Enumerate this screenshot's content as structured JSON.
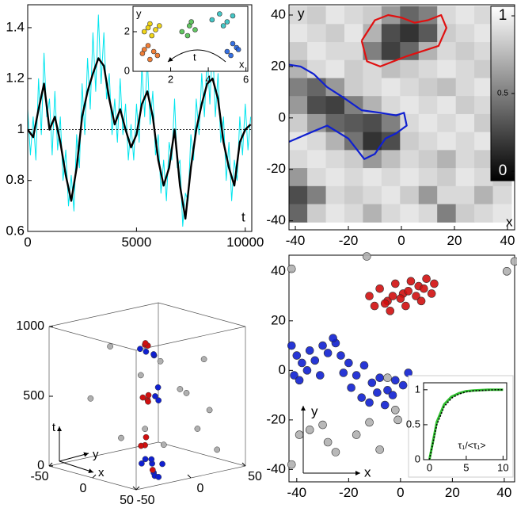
{
  "chart_data": [
    {
      "type": "line",
      "xlim": [
        0,
        10300
      ],
      "ylim": [
        0.6,
        1.49
      ],
      "xticks": [
        0,
        5000,
        10000
      ],
      "yticks": [
        0.6,
        0.8,
        1,
        1.2,
        1.4
      ],
      "xlabel": "t",
      "hline": 1,
      "series": [
        {
          "color": "#00e5ee",
          "x": [
            0,
            125,
            250,
            375,
            500,
            625,
            750,
            875,
            1000,
            1125,
            1250,
            1375,
            1500,
            1625,
            1750,
            1875,
            2000,
            2125,
            2250,
            2375,
            2500,
            2625,
            2750,
            2875,
            3000,
            3125,
            3250,
            3375,
            3500,
            3625,
            3750,
            3875,
            4000,
            4125,
            4250,
            4375,
            4500,
            4625,
            4750,
            4875,
            5000,
            5125,
            5250,
            5375,
            5500,
            5625,
            5750,
            5875,
            6000,
            6125,
            6250,
            6375,
            6500,
            6625,
            6750,
            6875,
            7000,
            7125,
            7250,
            7375,
            7500,
            7625,
            7750,
            7875,
            8000,
            8125,
            8250,
            8375,
            8500,
            8625,
            8750,
            8875,
            9000,
            9125,
            9250,
            9375,
            9500,
            9625,
            9750,
            9875,
            10000,
            10125,
            10250
          ],
          "values": [
            1.08,
            0.9,
            1.05,
            0.88,
            1.2,
            0.98,
            1.3,
            1.05,
            1.12,
            0.9,
            1.15,
            0.92,
            1.05,
            0.8,
            0.92,
            0.7,
            0.82,
            0.68,
            0.98,
            0.85,
            1.18,
            0.98,
            1.28,
            1.08,
            1.38,
            1.15,
            1.45,
            1.18,
            1.38,
            1.12,
            1.22,
            0.98,
            1.12,
            0.95,
            1.2,
            0.98,
            1.1,
            0.88,
            1.02,
            0.88,
            1.1,
            0.95,
            1.25,
            1.05,
            1.28,
            1.02,
            1.15,
            0.9,
            0.98,
            0.75,
            0.88,
            0.72,
            0.95,
            0.88,
            1.12,
            0.85,
            0.88,
            0.62,
            0.75,
            0.72,
            0.98,
            0.88,
            1.12,
            0.98,
            1.22,
            1.05,
            1.3,
            1.1,
            1.35,
            1.05,
            1.22,
            0.95,
            1.05,
            0.8,
            0.95,
            0.72,
            0.88,
            0.8,
            1.05,
            0.9,
            1.1,
            0.92,
            1.05
          ]
        },
        {
          "color": "#000000",
          "x": [
            0,
            250,
            500,
            750,
            1000,
            1250,
            1500,
            1750,
            2000,
            2250,
            2500,
            2750,
            3000,
            3250,
            3500,
            3750,
            4000,
            4250,
            4500,
            4750,
            5000,
            5250,
            5500,
            5750,
            6000,
            6250,
            6500,
            6750,
            7000,
            7250,
            7500,
            7750,
            8000,
            8250,
            8500,
            8750,
            9000,
            9250,
            9500,
            9750,
            10000,
            10250
          ],
          "values": [
            1.0,
            0.97,
            1.08,
            1.18,
            1.0,
            1.05,
            0.95,
            0.82,
            0.72,
            0.85,
            1.05,
            1.15,
            1.22,
            1.28,
            1.25,
            1.12,
            1.02,
            1.08,
            1.0,
            0.93,
            0.98,
            1.1,
            1.15,
            1.05,
            0.88,
            0.78,
            0.85,
            1.0,
            0.78,
            0.65,
            0.85,
            1.0,
            1.1,
            1.18,
            1.2,
            1.12,
            0.95,
            0.85,
            0.78,
            0.95,
            1.0,
            1.02
          ]
        }
      ],
      "inset": {
        "type": "scatter",
        "xlim": [
          0,
          6.1
        ],
        "ylim": [
          0,
          3.28
        ],
        "xticks": [
          2,
          4,
          6
        ],
        "yticks": [
          0,
          2
        ],
        "xlabel": "x",
        "ylabel": "y",
        "annotation": "t",
        "series": [
          {
            "color": "#f0d000",
            "x": [
              0.6,
              0.9,
              1.2,
              1.0,
              1.4,
              0.8
            ],
            "values": [
              2.0,
              2.4,
              2.1,
              1.8,
              2.3,
              2.2
            ]
          },
          {
            "color": "#50c050",
            "x": [
              2.6,
              3.0,
              3.3,
              2.9,
              3.1
            ],
            "values": [
              2.0,
              2.3,
              2.1,
              1.8,
              2.5
            ]
          },
          {
            "color": "#30c0c0",
            "x": [
              4.2,
              4.6,
              5.0,
              5.3,
              4.8
            ],
            "values": [
              2.6,
              2.9,
              2.5,
              2.8,
              2.3
            ]
          },
          {
            "color": "#2060e0",
            "x": [
              5.0,
              5.3,
              5.5,
              5.2,
              5.6
            ],
            "values": [
              1.0,
              1.4,
              1.2,
              0.8,
              1.1
            ]
          },
          {
            "color": "#f07020",
            "x": [
              0.5,
              0.8,
              1.1,
              1.3,
              0.9,
              0.6
            ],
            "values": [
              0.9,
              1.3,
              1.0,
              0.8,
              0.6,
              1.1
            ]
          }
        ]
      }
    },
    {
      "type": "heatmap",
      "xlim": [
        -42.4,
        42.7
      ],
      "ylim": [
        -43.5,
        44
      ],
      "xticks": [
        -40,
        -20,
        0,
        20,
        40
      ],
      "yticks": [
        -40,
        -20,
        0,
        20,
        40
      ],
      "xlabel": "x",
      "ylabel": "y",
      "x": [
        -39,
        -32,
        -25,
        -18,
        -11,
        -4,
        3,
        10,
        17,
        24,
        31,
        38
      ],
      "y": [
        40,
        33,
        26,
        19,
        12,
        5,
        -2,
        -9,
        -16,
        -23,
        -30,
        -37
      ],
      "z": [
        [
          0.85,
          0.8,
          0.9,
          0.85,
          0.8,
          0.6,
          0.4,
          0.5,
          0.85,
          0.9,
          0.85,
          0.8
        ],
        [
          0.9,
          0.85,
          0.8,
          0.9,
          0.7,
          0.3,
          0.2,
          0.35,
          0.8,
          0.85,
          0.9,
          0.75
        ],
        [
          0.8,
          0.9,
          0.85,
          0.85,
          0.5,
          0.25,
          0.4,
          0.7,
          0.85,
          0.8,
          0.85,
          0.9
        ],
        [
          0.7,
          0.85,
          0.9,
          0.8,
          0.85,
          0.75,
          0.8,
          0.85,
          0.9,
          0.85,
          0.8,
          0.85
        ],
        [
          0.5,
          0.4,
          0.6,
          0.8,
          0.85,
          0.9,
          0.85,
          0.8,
          0.75,
          0.85,
          0.9,
          0.8
        ],
        [
          0.6,
          0.3,
          0.25,
          0.5,
          0.7,
          0.85,
          0.9,
          0.85,
          0.9,
          0.8,
          0.85,
          0.85
        ],
        [
          0.8,
          0.6,
          0.4,
          0.35,
          0.3,
          0.5,
          0.85,
          0.9,
          0.85,
          0.9,
          0.8,
          0.9
        ],
        [
          0.9,
          0.85,
          0.7,
          0.45,
          0.2,
          0.3,
          0.8,
          0.85,
          0.9,
          0.85,
          0.9,
          0.85
        ],
        [
          0.85,
          0.9,
          0.85,
          0.8,
          0.6,
          0.75,
          0.85,
          0.8,
          0.7,
          0.85,
          0.8,
          0.9
        ],
        [
          0.6,
          0.85,
          0.9,
          0.85,
          0.9,
          0.85,
          0.9,
          0.85,
          0.8,
          0.9,
          0.85,
          0.8
        ],
        [
          0.3,
          0.5,
          0.85,
          0.8,
          0.85,
          0.9,
          0.8,
          0.6,
          0.85,
          0.85,
          0.7,
          0.85
        ],
        [
          0.4,
          0.8,
          0.9,
          0.85,
          0.7,
          0.85,
          0.9,
          0.85,
          0.5,
          0.8,
          0.85,
          0.9
        ]
      ],
      "clim": [
        0,
        1
      ],
      "cticks": [
        0,
        0.5,
        1
      ],
      "contours": [
        {
          "color": "#e01010",
          "x": [
            -15,
            -10,
            -5,
            0,
            5,
            10,
            15,
            17,
            14,
            8,
            2,
            -3,
            -8,
            -13,
            -15
          ],
          "values": [
            30,
            38,
            40,
            39,
            37,
            38,
            40,
            35,
            28,
            26,
            24,
            22,
            20,
            22,
            30
          ]
        },
        {
          "color": "#1020d0",
          "x": [
            -44,
            -38,
            -33,
            -28,
            -22,
            -15,
            -8,
            -2,
            1,
            2,
            -2,
            -6,
            -10,
            -14,
            -20,
            -28,
            -35,
            -44
          ],
          "values": [
            21,
            20,
            17,
            12,
            8,
            3,
            2,
            1,
            2,
            -3,
            -6,
            -8,
            -14,
            -16,
            -8,
            -3,
            -6,
            -10
          ]
        }
      ]
    },
    {
      "type": "scatter3d",
      "xlim": [
        -50,
        50
      ],
      "ylim": [
        -50,
        50
      ],
      "tlim": [
        0,
        1000
      ],
      "xticks": [
        -50,
        0,
        50
      ],
      "yticks": [
        -50,
        0,
        50
      ],
      "tticks": [
        0,
        500,
        1000
      ],
      "xlabel": "x",
      "ylabel": "y",
      "tlabel": "t",
      "series": [
        {
          "color": "#1020d0",
          "x": [
            55,
            58,
            52,
            60,
            50,
            53,
            48,
            58,
            62,
            55,
            65,
            50,
            45,
            40,
            38
          ],
          "y": [
            -45,
            -40,
            -48,
            -42,
            -30,
            -35,
            -28,
            -48,
            -45,
            -40,
            -38,
            -45,
            -30,
            -25,
            -20
          ],
          "values": [
            990,
            960,
            1010,
            975,
            700,
            650,
            600,
            230,
            200,
            210,
            190,
            180,
            80,
            40,
            20
          ]
        },
        {
          "color": "#d01010",
          "x": [
            35,
            32,
            38,
            30,
            28,
            34,
            26,
            30,
            35,
            28,
            25
          ],
          "y": [
            -30,
            -25,
            -32,
            -28,
            -22,
            -26,
            -20,
            -25,
            -30,
            -28,
            -15
          ],
          "values": [
            980,
            960,
            1000,
            590,
            560,
            610,
            540,
            300,
            260,
            240,
            40
          ]
        },
        {
          "color": "#b0b0b0",
          "x": [
            -10,
            -20,
            0,
            10,
            -30,
            20,
            30,
            -40,
            40,
            -5,
            15,
            -25,
            45
          ],
          "y": [
            20,
            10,
            30,
            -10,
            0,
            30,
            40,
            -20,
            20,
            -30,
            45,
            35,
            0
          ],
          "values": [
            700,
            600,
            500,
            300,
            150,
            250,
            100,
            450,
            800,
            900,
            350,
            50,
            600
          ]
        }
      ]
    },
    {
      "type": "scatter",
      "xlim": [
        -43,
        44
      ],
      "ylim": [
        -45,
        46.5
      ],
      "xticks": [
        -40,
        -20,
        0,
        20,
        40
      ],
      "yticks": [
        -40,
        -20,
        0,
        20,
        40
      ],
      "xlabel": "x",
      "ylabel": "y",
      "series": [
        {
          "color": "#d01010",
          "x": [
            -12,
            -8,
            -5,
            -2,
            1,
            4,
            7,
            10,
            13,
            -10,
            -6,
            -3,
            0,
            3,
            6,
            9,
            12,
            -4,
            2,
            8
          ],
          "values": [
            30,
            33,
            28,
            35,
            31,
            36,
            34,
            37,
            35,
            26,
            27,
            30,
            29,
            32,
            30,
            33,
            31,
            24,
            26,
            28
          ]
        },
        {
          "color": "#1020d0",
          "x": [
            -42,
            -40,
            -38,
            -35,
            -33,
            -30,
            -28,
            -25,
            -22,
            -20,
            -17,
            -14,
            -11,
            -8,
            -5,
            -2,
            1,
            3,
            -36,
            -31,
            -26,
            -23,
            -19,
            -15,
            -12,
            -9,
            -6,
            -3,
            -41,
            -39
          ],
          "values": [
            10,
            6,
            3,
            8,
            4,
            10,
            7,
            11,
            -1,
            3,
            -2,
            2,
            -5,
            -3,
            -8,
            -4,
            -6,
            -1,
            0,
            -2,
            13,
            6,
            -7,
            -11,
            -13,
            -9,
            -14,
            -10,
            -2,
            -4
          ]
        },
        {
          "color": "#b0b0b0",
          "x": [
            -42,
            -13,
            -5,
            20,
            24,
            44,
            41,
            -1,
            -2,
            -39,
            -35,
            -30,
            -28,
            -17,
            -8,
            -25,
            -42,
            -12
          ],
          "values": [
            41,
            46,
            -3,
            -13,
            -15,
            44,
            40,
            -20,
            -16,
            -26,
            -24,
            -22,
            -29,
            -26,
            -32,
            -33,
            -38,
            -21
          ]
        }
      ],
      "inset": {
        "type": "line",
        "xlim": [
          -0.8,
          10.5
        ],
        "ylim": [
          0,
          1.1
        ],
        "xticks": [
          0,
          5,
          10
        ],
        "yticks": [
          0,
          0.5,
          1
        ],
        "ylabel": "τ₁/<τ₁>",
        "series": [
          {
            "color": "#30c030",
            "x": [
              0,
              1,
              2,
              3,
              4,
              5,
              6,
              7,
              8,
              9,
              10
            ],
            "values": [
              0,
              0.54,
              0.79,
              0.9,
              0.95,
              0.98,
              0.99,
              0.995,
              1,
              1,
              1
            ]
          },
          {
            "color": "#000000",
            "dash": true,
            "x": [
              0,
              1,
              2,
              3,
              4,
              5,
              6,
              7,
              8,
              9,
              10
            ],
            "values": [
              0,
              0.5,
              0.76,
              0.88,
              0.94,
              0.97,
              0.985,
              0.99,
              0.995,
              1,
              1
            ]
          }
        ]
      }
    }
  ]
}
